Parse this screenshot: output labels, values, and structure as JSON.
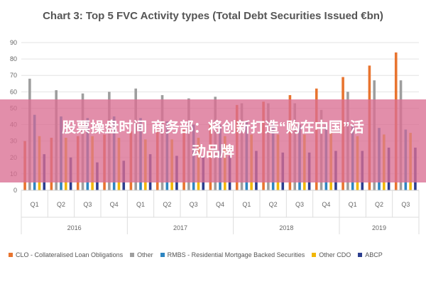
{
  "chart_data": {
    "type": "bar",
    "title": "Chart 3: Top 5 FVC Activity types (Total Debt Securities Issued €bn)",
    "ylim": [
      0,
      90
    ],
    "yticks": [
      0,
      10,
      20,
      30,
      40,
      50,
      60,
      70,
      80,
      90
    ],
    "categories": [
      "Q1",
      "Q2",
      "Q3",
      "Q4",
      "Q1",
      "Q2",
      "Q3",
      "Q4",
      "Q1",
      "Q2",
      "Q3",
      "Q4",
      "Q1",
      "Q2",
      "Q3"
    ],
    "groups": [
      {
        "label": "2016",
        "count": 4
      },
      {
        "label": "2017",
        "count": 4
      },
      {
        "label": "2018",
        "count": 4
      },
      {
        "label": "2019",
        "count": 3
      }
    ],
    "series": [
      {
        "name": "CLO - Collateralised Loan Obligations",
        "color": "#e8742f",
        "values": [
          30,
          32,
          33,
          34,
          36,
          37,
          38,
          41,
          52,
          54,
          58,
          62,
          69,
          76,
          84
        ]
      },
      {
        "name": "Other",
        "color": "#9e9e9e",
        "values": [
          68,
          61,
          59,
          60,
          62,
          58,
          56,
          57,
          53,
          53,
          53,
          49,
          60,
          67,
          67
        ]
      },
      {
        "name": "RMBS - Residential Mortgage Backed Securities",
        "color": "#2e86c1",
        "values": [
          46,
          45,
          44,
          45,
          44,
          42,
          40,
          40,
          42,
          41,
          40,
          40,
          40,
          38,
          37
        ]
      },
      {
        "name": "Other CDO",
        "color": "#f2b705",
        "values": [
          33,
          32,
          33,
          32,
          31,
          31,
          32,
          33,
          34,
          34,
          34,
          35,
          33,
          34,
          35
        ]
      },
      {
        "name": "ABCP",
        "color": "#2c3e8f",
        "values": [
          22,
          20,
          17,
          18,
          22,
          21,
          21,
          21,
          24,
          23,
          23,
          24,
          24,
          26,
          26
        ]
      }
    ]
  },
  "overlay": {
    "line1": "股票操盘时间 商务部：将创新打造“购在中国”活",
    "line2": "动品牌"
  }
}
